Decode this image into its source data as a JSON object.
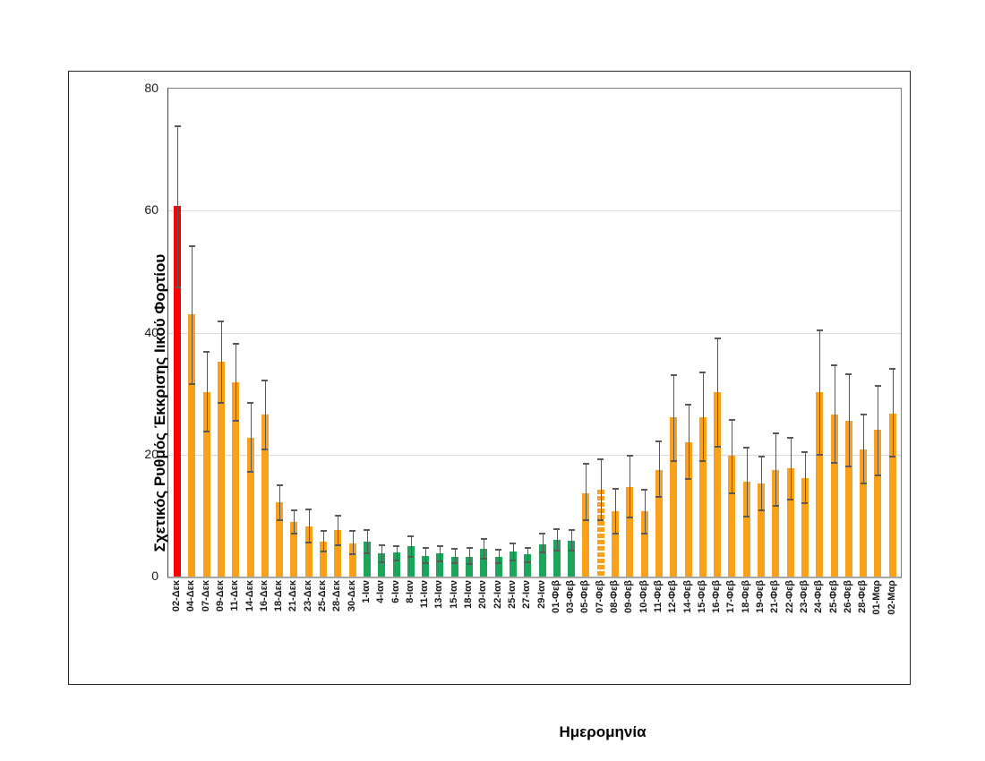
{
  "chart_data": {
    "type": "bar",
    "title": "",
    "xlabel": "Ημερομηνία",
    "ylabel": "Σχετικός Ρυθμός Έκκρισης Ιικού Φορτίου",
    "ylim": [
      0,
      80
    ],
    "yticks": [
      0,
      20,
      40,
      60,
      80
    ],
    "grid": "horizontal",
    "legend": "none",
    "error_bars": true,
    "colors": {
      "red": "#fe0000",
      "orange": "#f9a11b",
      "green": "#1ca65b",
      "error": "#595959",
      "gridline": "#d9d9d9"
    },
    "bars": [
      {
        "label": "02-Δεκ",
        "value": 60.7,
        "err_low": 47.4,
        "err_high": 73.8,
        "color": "red",
        "striped": false
      },
      {
        "label": "04-Δεκ",
        "value": 43.0,
        "err_low": 31.6,
        "err_high": 54.2,
        "color": "orange",
        "striped": false
      },
      {
        "label": "07-Δεκ",
        "value": 30.3,
        "err_low": 23.8,
        "err_high": 36.8,
        "color": "orange",
        "striped": false
      },
      {
        "label": "09-Δεκ",
        "value": 35.2,
        "err_low": 28.5,
        "err_high": 41.8,
        "color": "orange",
        "striped": false
      },
      {
        "label": "11-Δεκ",
        "value": 31.9,
        "err_low": 25.6,
        "err_high": 38.1,
        "color": "orange",
        "striped": false
      },
      {
        "label": "14-Δεκ",
        "value": 22.8,
        "err_low": 17.2,
        "err_high": 28.5,
        "color": "orange",
        "striped": false
      },
      {
        "label": "16-Δεκ",
        "value": 26.5,
        "err_low": 20.9,
        "err_high": 32.2,
        "color": "orange",
        "striped": false
      },
      {
        "label": "18-Δεκ",
        "value": 12.2,
        "err_low": 9.2,
        "err_high": 15.0,
        "color": "orange",
        "striped": false
      },
      {
        "label": "21-Δεκ",
        "value": 9.0,
        "err_low": 7.0,
        "err_high": 10.8,
        "color": "orange",
        "striped": false
      },
      {
        "label": "23-Δεκ",
        "value": 8.2,
        "err_low": 5.6,
        "err_high": 11.0,
        "color": "orange",
        "striped": false
      },
      {
        "label": "25-Δεκ",
        "value": 5.8,
        "err_low": 4.1,
        "err_high": 7.5,
        "color": "orange",
        "striped": false
      },
      {
        "label": "28-Δεκ",
        "value": 7.6,
        "err_low": 5.2,
        "err_high": 10.0,
        "color": "orange",
        "striped": false
      },
      {
        "label": "30-Δεκ",
        "value": 5.5,
        "err_low": 3.6,
        "err_high": 7.5,
        "color": "orange",
        "striped": false
      },
      {
        "label": "1-Ιαν",
        "value": 5.8,
        "err_low": 3.8,
        "err_high": 7.7,
        "color": "green",
        "striped": false
      },
      {
        "label": "4-Ιαν",
        "value": 3.8,
        "err_low": 2.4,
        "err_high": 5.1,
        "color": "green",
        "striped": false
      },
      {
        "label": "6-Ιαν",
        "value": 3.9,
        "err_low": 2.6,
        "err_high": 5.0,
        "color": "green",
        "striped": false
      },
      {
        "label": "8-Ιαν",
        "value": 5.0,
        "err_low": 3.3,
        "err_high": 6.6,
        "color": "green",
        "striped": false
      },
      {
        "label": "11-Ιαν",
        "value": 3.4,
        "err_low": 2.2,
        "err_high": 4.7,
        "color": "green",
        "striped": false
      },
      {
        "label": "13-Ιαν",
        "value": 3.8,
        "err_low": 2.5,
        "err_high": 5.0,
        "color": "green",
        "striped": false
      },
      {
        "label": "15-Ιαν",
        "value": 3.3,
        "err_low": 2.2,
        "err_high": 4.5,
        "color": "green",
        "striped": false
      },
      {
        "label": "18-Ιαν",
        "value": 3.2,
        "err_low": 2.0,
        "err_high": 4.7,
        "color": "green",
        "striped": false
      },
      {
        "label": "20-Ιαν",
        "value": 4.5,
        "err_low": 2.9,
        "err_high": 6.1,
        "color": "green",
        "striped": false
      },
      {
        "label": "22-Ιαν",
        "value": 3.3,
        "err_low": 2.2,
        "err_high": 4.4,
        "color": "green",
        "striped": false
      },
      {
        "label": "25-Ιαν",
        "value": 4.1,
        "err_low": 2.7,
        "err_high": 5.5,
        "color": "green",
        "striped": false
      },
      {
        "label": "27-Ιαν",
        "value": 3.6,
        "err_low": 2.4,
        "err_high": 4.7,
        "color": "green",
        "striped": false
      },
      {
        "label": "29-Ιαν",
        "value": 5.3,
        "err_low": 4.0,
        "err_high": 7.1,
        "color": "green",
        "striped": false
      },
      {
        "label": "01-Φεβ",
        "value": 6.0,
        "err_low": 4.2,
        "err_high": 7.8,
        "color": "green",
        "striped": false
      },
      {
        "label": "03-Φεβ",
        "value": 5.9,
        "err_low": 4.3,
        "err_high": 7.6,
        "color": "green",
        "striped": false
      },
      {
        "label": "05-Φεβ",
        "value": 13.7,
        "err_low": 9.2,
        "err_high": 18.5,
        "color": "orange",
        "striped": false
      },
      {
        "label": "07-Φεβ",
        "value": 14.3,
        "err_low": 9.3,
        "err_high": 19.2,
        "color": "orange",
        "striped": true
      },
      {
        "label": "08-Φεβ",
        "value": 10.7,
        "err_low": 7.1,
        "err_high": 14.4,
        "color": "orange",
        "striped": false
      },
      {
        "label": "09-Φεβ",
        "value": 14.7,
        "err_low": 9.7,
        "err_high": 19.8,
        "color": "orange",
        "striped": false
      },
      {
        "label": "10-Φεβ",
        "value": 10.7,
        "err_low": 7.1,
        "err_high": 14.3,
        "color": "orange",
        "striped": false
      },
      {
        "label": "11-Φεβ",
        "value": 17.5,
        "err_low": 13.1,
        "err_high": 22.2,
        "color": "orange",
        "striped": false
      },
      {
        "label": "12-Φεβ",
        "value": 26.1,
        "err_low": 18.9,
        "err_high": 33.1,
        "color": "orange",
        "striped": false
      },
      {
        "label": "14-Φεβ",
        "value": 22.0,
        "err_low": 16.0,
        "err_high": 28.2,
        "color": "orange",
        "striped": false
      },
      {
        "label": "15-Φεβ",
        "value": 26.2,
        "err_low": 18.9,
        "err_high": 33.4,
        "color": "orange",
        "striped": false
      },
      {
        "label": "16-Φεβ",
        "value": 30.2,
        "err_low": 21.3,
        "err_high": 39.1,
        "color": "orange",
        "striped": false
      },
      {
        "label": "17-Φεβ",
        "value": 19.8,
        "err_low": 13.7,
        "err_high": 25.7,
        "color": "orange",
        "striped": false
      },
      {
        "label": "18-Φεβ",
        "value": 15.5,
        "err_low": 9.8,
        "err_high": 21.1,
        "color": "orange",
        "striped": false
      },
      {
        "label": "19-Φεβ",
        "value": 15.3,
        "err_low": 10.9,
        "err_high": 19.7,
        "color": "orange",
        "striped": false
      },
      {
        "label": "21-Φεβ",
        "value": 17.5,
        "err_low": 11.6,
        "err_high": 23.5,
        "color": "orange",
        "striped": false
      },
      {
        "label": "22-Φεβ",
        "value": 17.7,
        "err_low": 12.6,
        "err_high": 22.7,
        "color": "orange",
        "striped": false
      },
      {
        "label": "23-Φεβ",
        "value": 16.2,
        "err_low": 12.1,
        "err_high": 20.4,
        "color": "orange",
        "striped": false
      },
      {
        "label": "24-Φεβ",
        "value": 30.2,
        "err_low": 20.0,
        "err_high": 40.4,
        "color": "orange",
        "striped": false
      },
      {
        "label": "25-Φεβ",
        "value": 26.5,
        "err_low": 18.6,
        "err_high": 34.6,
        "color": "orange",
        "striped": false
      },
      {
        "label": "26-Φεβ",
        "value": 25.6,
        "err_low": 18.0,
        "err_high": 33.2,
        "color": "orange",
        "striped": false
      },
      {
        "label": "28-Φεβ",
        "value": 20.9,
        "err_low": 15.2,
        "err_high": 26.6,
        "color": "orange",
        "striped": false
      },
      {
        "label": "01-Μαρ",
        "value": 24.1,
        "err_low": 16.6,
        "err_high": 31.3,
        "color": "orange",
        "striped": false
      },
      {
        "label": "02-Μαρ",
        "value": 26.7,
        "err_low": 19.6,
        "err_high": 34.1,
        "color": "orange",
        "striped": false
      }
    ]
  }
}
